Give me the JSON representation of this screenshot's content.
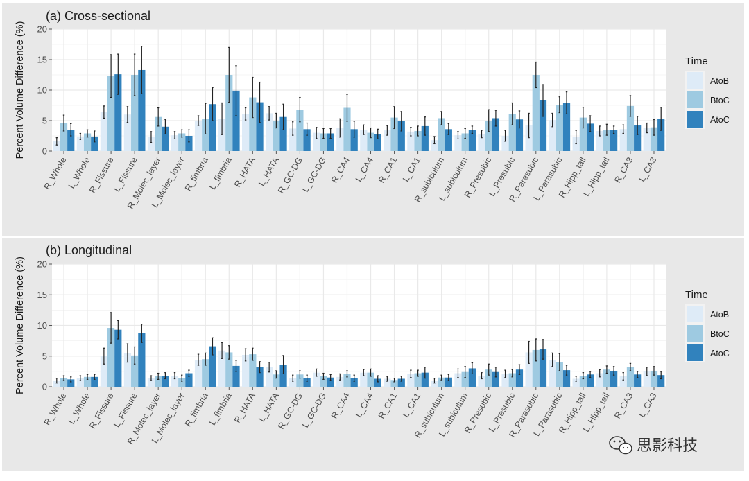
{
  "watermark": {
    "text": "思影科技",
    "icon": "wechat-icon"
  },
  "colors": {
    "panel_bg": "#e8e8e8",
    "plot_bg": "#ffffff",
    "grid": "#e9e9e9",
    "AtoB": "#deebf7",
    "BtoC": "#9ecae1",
    "AtoC": "#3182bd",
    "error_bar": "#222222"
  },
  "chart_data": [
    {
      "type": "bar",
      "title": "(a) Cross-sectional",
      "ylabel": "Percent Volume Difference (%)",
      "xlabel": "",
      "ylim": [
        0,
        20
      ],
      "yticks": [
        "0",
        "5",
        "10",
        "15",
        "20"
      ],
      "legend": {
        "title": "Time",
        "placement": "right"
      },
      "categories": [
        "R_Whole",
        "L_Whole",
        "R_Fissure",
        "L_Fissure",
        "R_Molec_layer",
        "L_Molec_layer",
        "R_fimbria",
        "L_fimbria",
        "R_HATA",
        "L_HATA",
        "R_GC-DG",
        "L_GC-DG",
        "R_CA4",
        "L_CA4",
        "R_CA1",
        "L_CA1",
        "R_subiculum",
        "L_subiculum",
        "R_Presubic",
        "L_Presubic",
        "R_Parasubic",
        "L_Parasubic",
        "R_Hipp_tail",
        "L_Hipp_tail",
        "R_CA3",
        "L_CA3"
      ],
      "series": [
        {
          "name": "AtoB",
          "values": [
            1.6,
            2.4,
            6.4,
            6.0,
            2.3,
            2.6,
            5.0,
            5.3,
            6.1,
            6.2,
            3.7,
            3.0,
            3.8,
            3.5,
            3.4,
            3.2,
            1.8,
            2.6,
            2.8,
            2.5,
            4.2,
            5.1,
            2.3,
            3.3,
            3.6,
            3.8
          ],
          "errors": [
            0.6,
            0.5,
            1.0,
            1.3,
            0.9,
            0.6,
            0.8,
            2.6,
            1.0,
            1.1,
            1.1,
            0.9,
            1.5,
            0.8,
            0.8,
            0.7,
            0.6,
            0.6,
            0.6,
            0.9,
            2.0,
            1.1,
            1.1,
            0.8,
            0.7,
            0.8
          ]
        },
        {
          "name": "BtoC",
          "values": [
            4.6,
            2.9,
            12.3,
            12.5,
            5.6,
            2.9,
            5.3,
            12.5,
            8.8,
            5.0,
            6.8,
            2.9,
            7.1,
            3.0,
            5.5,
            3.3,
            5.4,
            2.9,
            5.0,
            6.1,
            12.5,
            7.6,
            5.5,
            3.5,
            7.4,
            3.9
          ],
          "errors": [
            1.3,
            0.6,
            3.5,
            3.4,
            1.5,
            0.6,
            2.5,
            4.5,
            3.3,
            1.2,
            2.0,
            0.8,
            2.2,
            0.8,
            1.8,
            0.8,
            1.1,
            0.8,
            1.8,
            1.8,
            2.1,
            1.3,
            1.7,
            0.9,
            1.7,
            1.3
          ]
        },
        {
          "name": "AtoC",
          "values": [
            3.5,
            2.4,
            12.6,
            13.3,
            4.0,
            2.5,
            7.7,
            9.9,
            8.0,
            5.6,
            3.6,
            2.9,
            3.6,
            2.8,
            4.9,
            4.1,
            3.6,
            3.5,
            5.4,
            5.2,
            8.3,
            7.9,
            4.5,
            3.5,
            4.2,
            5.3
          ],
          "errors": [
            1.0,
            0.9,
            3.3,
            3.9,
            1.2,
            1.0,
            2.7,
            4.1,
            3.3,
            2.1,
            1.0,
            0.8,
            1.3,
            0.8,
            1.6,
            1.5,
            0.9,
            0.6,
            1.3,
            1.4,
            2.6,
            1.8,
            1.3,
            0.6,
            1.5,
            1.9
          ]
        }
      ]
    },
    {
      "type": "bar",
      "title": "(b) Longitudinal",
      "ylabel": "Percent Volume Difference (%)",
      "xlabel": "",
      "ylim": [
        0,
        20
      ],
      "yticks": [
        "0",
        "5",
        "10",
        "15",
        "20"
      ],
      "legend": {
        "title": "Time",
        "placement": "right"
      },
      "categories": [
        "R_Whole",
        "L_Whole",
        "R_Fissure",
        "L_Fissure",
        "R_Molec_layer",
        "L_Molec_layer",
        "R_fimbria",
        "L_fimbria",
        "R_HATA",
        "L_HATA",
        "R_GC-DG",
        "L_GC-DG",
        "R_CA4",
        "L_CA4",
        "R_CA1",
        "L_CA1",
        "R_subiculum",
        "L_subiculum",
        "R_Presubic",
        "L_Presubic",
        "R_Parasubic",
        "L_Parasubic",
        "R_Hipp_tail",
        "L_Hipp_tail",
        "R_CA3",
        "L_CA3"
      ],
      "series": [
        {
          "name": "AtoB",
          "values": [
            1.0,
            1.4,
            5.0,
            5.5,
            1.4,
            1.8,
            4.4,
            5.9,
            5.2,
            3.2,
            1.4,
            2.3,
            1.6,
            2.3,
            1.3,
            2.1,
            1.0,
            2.2,
            1.8,
            2.1,
            5.6,
            4.4,
            1.3,
            2.2,
            1.7,
            2.5
          ],
          "errors": [
            0.4,
            0.4,
            1.3,
            1.5,
            0.4,
            0.5,
            0.9,
            1.3,
            1.0,
            0.8,
            0.5,
            0.6,
            0.5,
            0.5,
            0.4,
            0.6,
            0.4,
            0.7,
            0.5,
            0.6,
            1.8,
            1.1,
            0.4,
            0.6,
            0.6,
            0.7
          ]
        },
        {
          "name": "BtoC",
          "values": [
            1.4,
            1.6,
            9.6,
            5.1,
            1.7,
            1.4,
            4.5,
            5.6,
            5.3,
            2.0,
            2.0,
            1.7,
            2.1,
            2.3,
            1.1,
            2.2,
            1.5,
            2.4,
            2.8,
            2.2,
            6.0,
            4.0,
            1.8,
            2.8,
            3.2,
            2.6
          ],
          "errors": [
            0.4,
            0.4,
            2.5,
            1.4,
            0.5,
            0.5,
            1.0,
            1.1,
            1.0,
            0.6,
            0.6,
            0.5,
            0.5,
            0.6,
            0.3,
            0.5,
            0.4,
            0.9,
            0.9,
            0.6,
            1.8,
            1.4,
            0.5,
            0.6,
            0.6,
            0.7
          ]
        },
        {
          "name": "AtoC",
          "values": [
            1.2,
            1.6,
            9.3,
            8.7,
            1.8,
            2.2,
            6.6,
            3.4,
            3.2,
            3.6,
            1.4,
            1.5,
            1.4,
            1.3,
            1.3,
            2.3,
            1.5,
            3.0,
            2.4,
            2.8,
            6.1,
            2.7,
            2.0,
            2.6,
            2.0,
            1.9
          ],
          "errors": [
            0.4,
            0.4,
            1.5,
            1.5,
            0.5,
            0.5,
            1.4,
            0.9,
            0.9,
            1.5,
            0.5,
            0.5,
            0.5,
            0.5,
            0.4,
            0.9,
            0.5,
            0.9,
            0.8,
            0.8,
            1.6,
            0.8,
            0.5,
            0.7,
            0.5,
            0.6
          ]
        }
      ]
    }
  ]
}
